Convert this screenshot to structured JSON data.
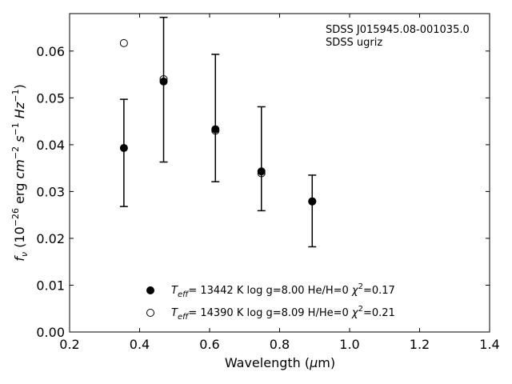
{
  "chart_data": {
    "type": "scatter",
    "xlabel_pre": "Wavelength (",
    "xlabel_mu": "μ",
    "xlabel_post": "m)",
    "ylabel_text": "f",
    "ylabel_sub": "ν",
    "ylabel_unit": " (10",
    "ylabel_exp1": "−26",
    "ylabel_mid1": " erg ",
    "ylabel_cm": "cm",
    "ylabel_exp2": "−2",
    "ylabel_s": " s",
    "ylabel_exp3": "−1",
    "ylabel_hz": " Hz",
    "ylabel_exp4": "−1",
    "ylabel_close": ")",
    "xlim": [
      0.2,
      1.4
    ],
    "ylim": [
      0.0,
      0.068
    ],
    "xticks": [
      0.2,
      0.4,
      0.6,
      0.8,
      1.0,
      1.2,
      1.4
    ],
    "xtick_labels": [
      "0.2",
      "0.4",
      "0.6",
      "0.8",
      "1.0",
      "1.2",
      "1.4"
    ],
    "yticks": [
      0.0,
      0.01,
      0.02,
      0.03,
      0.04,
      0.05,
      0.06
    ],
    "ytick_labels": [
      "0.00",
      "0.01",
      "0.02",
      "0.03",
      "0.04",
      "0.05",
      "0.06"
    ],
    "annotation": [
      "SDSS J015945.08-001035.0",
      "SDSS ugriz"
    ],
    "observed": {
      "x": [
        0.3551,
        0.4686,
        0.6166,
        0.748,
        0.8932
      ],
      "y": [
        0.0393,
        0.0535,
        0.0433,
        0.0343,
        0.0279
      ],
      "yerr_low": [
        0.0268,
        0.0363,
        0.0321,
        0.0259,
        0.0182
      ],
      "yerr_high": [
        0.0497,
        0.0672,
        0.0593,
        0.0481,
        0.0335
      ]
    },
    "series": [
      {
        "name": "Teff= 13442 K  log g=8.00  He/H=0  χ2=0.17",
        "marker": "filled-circle",
        "x": [
          0.3551,
          0.4686,
          0.6166,
          0.748,
          0.8932
        ],
        "y": [
          0.0393,
          0.0535,
          0.0433,
          0.0343,
          0.0279
        ]
      },
      {
        "name": "Teff= 14390 K  log g=8.09  H/He=0  χ2=0.21",
        "marker": "open-circle",
        "x": [
          0.3551,
          0.4686,
          0.6166,
          0.748,
          0.8932
        ],
        "y": [
          0.0617,
          0.054,
          0.043,
          0.0339,
          0.0279
        ]
      }
    ],
    "legend": [
      {
        "T": "T",
        "sub": "eff",
        "rest": "= 13442 K  log g=8.00  He/H=0  ",
        "chi": "χ",
        "sup": "2",
        "val": "=0.17"
      },
      {
        "T": "T",
        "sub": "eff",
        "rest": "= 14390 K  log g=8.09  H/He=0  ",
        "chi": "χ",
        "sup": "2",
        "val": "=0.21"
      }
    ],
    "legend_placement": "lower-center",
    "grid": false,
    "colors": {
      "marker": "#000000",
      "axis": "#000000"
    }
  }
}
